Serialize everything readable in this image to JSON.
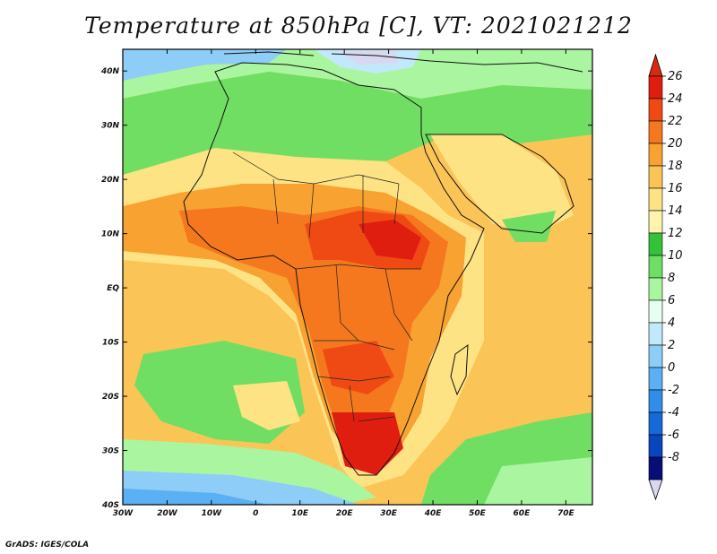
{
  "title": "Temperature at 850hPa [C], VT: 2021021212",
  "footer": "GrADS: IGES/COLA",
  "map": {
    "lon_range": [
      -30,
      76
    ],
    "lat_range": [
      -40,
      44
    ],
    "lon_ticks": [
      {
        "value": -30,
        "label": "30W"
      },
      {
        "value": -20,
        "label": "20W"
      },
      {
        "value": -10,
        "label": "10W"
      },
      {
        "value": 0,
        "label": "0"
      },
      {
        "value": 10,
        "label": "10E"
      },
      {
        "value": 20,
        "label": "20E"
      },
      {
        "value": 30,
        "label": "30E"
      },
      {
        "value": 40,
        "label": "40E"
      },
      {
        "value": 50,
        "label": "50E"
      },
      {
        "value": 60,
        "label": "60E"
      },
      {
        "value": 70,
        "label": "70E"
      }
    ],
    "lat_ticks": [
      {
        "value": 40,
        "label": "40N"
      },
      {
        "value": 30,
        "label": "30N"
      },
      {
        "value": 20,
        "label": "20N"
      },
      {
        "value": 10,
        "label": "10N"
      },
      {
        "value": 0,
        "label": "EQ"
      },
      {
        "value": -10,
        "label": "10S"
      },
      {
        "value": -20,
        "label": "20S"
      },
      {
        "value": -30,
        "label": "30S"
      },
      {
        "value": -40,
        "label": "40S"
      }
    ]
  },
  "colorbar": {
    "levels": [
      "26",
      "24",
      "22",
      "20",
      "18",
      "16",
      "14",
      "12",
      "10",
      "8",
      "6",
      "4",
      "2",
      "0",
      "-2",
      "-4",
      "-6",
      "-8"
    ],
    "colors": [
      "#e01e10",
      "#f04a14",
      "#f5781e",
      "#f8a232",
      "#fbc457",
      "#fde384",
      "#fff3b0",
      "#34c23a",
      "#70de63",
      "#aaf5a0",
      "#e6fff0",
      "#c2e8fc",
      "#8dcdf8",
      "#5ab0f2",
      "#2e8ee8",
      "#1669d8",
      "#0a45be",
      "#080e78"
    ],
    "top_arrow_color": "#d82a10",
    "bottom_arrow_color": "#d8d8f0"
  }
}
